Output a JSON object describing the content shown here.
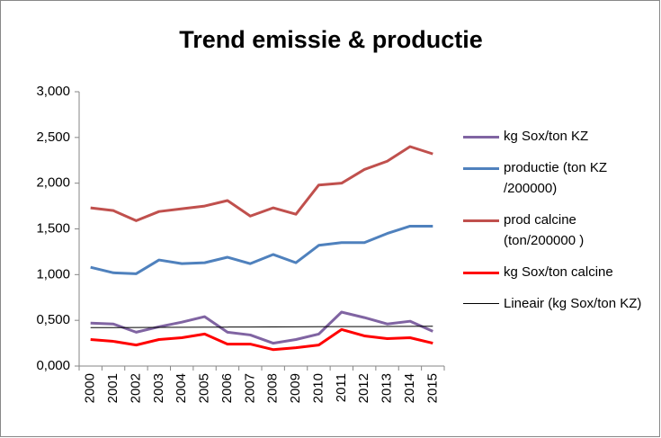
{
  "chart_data": {
    "type": "line",
    "title": "Trend emissie & productie",
    "categories": [
      "2000",
      "2001",
      "2002",
      "2003",
      "2004",
      "2005",
      "2006",
      "2007",
      "2008",
      "2009",
      "2010",
      "2011",
      "2012",
      "2013",
      "2014",
      "2015"
    ],
    "series": [
      {
        "name": "kg Sox/ton KZ",
        "color": "#8064a2",
        "line_width": 3,
        "values": [
          0.47,
          0.46,
          0.37,
          0.43,
          0.48,
          0.54,
          0.37,
          0.34,
          0.25,
          0.29,
          0.35,
          0.59,
          0.53,
          0.46,
          0.49,
          0.38
        ]
      },
      {
        "name": "productie (ton KZ /200000)",
        "color": "#4f81bd",
        "line_width": 3,
        "values": [
          1.08,
          1.02,
          1.01,
          1.16,
          1.12,
          1.13,
          1.19,
          1.12,
          1.22,
          1.13,
          1.32,
          1.35,
          1.35,
          1.45,
          1.53,
          1.53
        ]
      },
      {
        "name": "prod calcine (ton/200000 )",
        "color": "#c0504d",
        "line_width": 3,
        "values": [
          1.73,
          1.7,
          1.59,
          1.69,
          1.72,
          1.75,
          1.81,
          1.64,
          1.73,
          1.66,
          1.98,
          2.0,
          2.15,
          2.24,
          2.4,
          2.32
        ]
      },
      {
        "name": "kg Sox/ton calcine",
        "color": "#ff0000",
        "line_width": 3,
        "values": [
          0.29,
          0.27,
          0.23,
          0.29,
          0.31,
          0.35,
          0.24,
          0.24,
          0.18,
          0.2,
          0.23,
          0.4,
          0.33,
          0.3,
          0.31,
          0.25
        ]
      },
      {
        "name": "Lineair (kg Sox/ton KZ)",
        "color": "#000000",
        "line_width": 1,
        "values": [
          0.42,
          0.421,
          0.422,
          0.423,
          0.424,
          0.425,
          0.426,
          0.427,
          0.428,
          0.429,
          0.43,
          0.431,
          0.432,
          0.433,
          0.434,
          0.435
        ]
      }
    ],
    "ylim": [
      0,
      3
    ],
    "yticks": [
      {
        "value": 0,
        "label": "0,000"
      },
      {
        "value": 0.5,
        "label": "0,500"
      },
      {
        "value": 1,
        "label": "1,000"
      },
      {
        "value": 1.5,
        "label": "1,500"
      },
      {
        "value": 2,
        "label": "2,000"
      },
      {
        "value": 2.5,
        "label": "2,500"
      },
      {
        "value": 3,
        "label": "3,000"
      }
    ],
    "grid": false,
    "legend": "right"
  }
}
